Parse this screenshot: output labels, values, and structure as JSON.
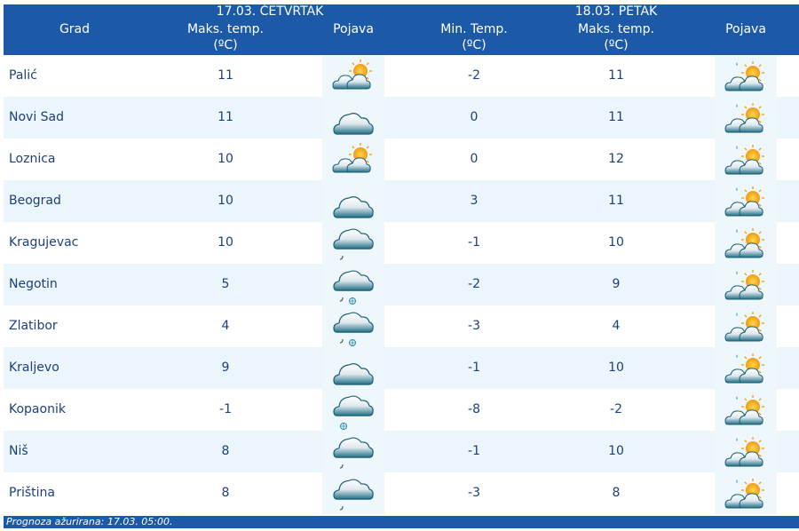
{
  "header": {
    "day1": "17.03. ČETVRTAK",
    "day2": "18.03. PETAK",
    "grad": "Grad",
    "max1": "Maks. temp.",
    "unit": "(ºC)",
    "pojava": "Pojava",
    "min2": "Min. Temp.",
    "max2": "Maks. temp."
  },
  "rows": [
    {
      "city": "Palić",
      "max1": "11",
      "icon1": "partly-cloudy",
      "min2": "-2",
      "max2": "11",
      "icon2": "partly-cloudy-drop"
    },
    {
      "city": "Novi Sad",
      "max1": "11",
      "icon1": "cloud",
      "min2": "0",
      "max2": "11",
      "icon2": "partly-cloudy-drop"
    },
    {
      "city": "Loznica",
      "max1": "10",
      "icon1": "partly-cloudy",
      "min2": "0",
      "max2": "12",
      "icon2": "partly-cloudy-drop"
    },
    {
      "city": "Beograd",
      "max1": "10",
      "icon1": "cloud",
      "min2": "3",
      "max2": "11",
      "icon2": "partly-cloudy-drop"
    },
    {
      "city": "Kragujevac",
      "max1": "10",
      "icon1": "cloud-rain",
      "min2": "-1",
      "max2": "10",
      "icon2": "partly-cloudy-drop"
    },
    {
      "city": "Negotin",
      "max1": "5",
      "icon1": "cloud-rain-snow",
      "min2": "-2",
      "max2": "9",
      "icon2": "partly-cloudy-drop"
    },
    {
      "city": "Zlatibor",
      "max1": "4",
      "icon1": "cloud-rain-snow",
      "min2": "-3",
      "max2": "4",
      "icon2": "partly-cloudy-drop"
    },
    {
      "city": "Kraljevo",
      "max1": "9",
      "icon1": "cloud",
      "min2": "-1",
      "max2": "10",
      "icon2": "partly-cloudy-drop"
    },
    {
      "city": "Kopaonik",
      "max1": "-1",
      "icon1": "cloud-snow",
      "min2": "-8",
      "max2": "-2",
      "icon2": "partly-cloudy-drop"
    },
    {
      "city": "Niš",
      "max1": "8",
      "icon1": "cloud-rain",
      "min2": "-1",
      "max2": "10",
      "icon2": "partly-cloudy-drop"
    },
    {
      "city": "Priština",
      "max1": "8",
      "icon1": "cloud-rain",
      "min2": "-3",
      "max2": "8",
      "icon2": "partly-cloudy-drop"
    }
  ],
  "footer": "Prognoza ažurirana:  17.03. 05:00.",
  "colors": {
    "header": "#1c5aa8",
    "alt_row": "#eaf6fb",
    "text": "#1f3f7a"
  }
}
